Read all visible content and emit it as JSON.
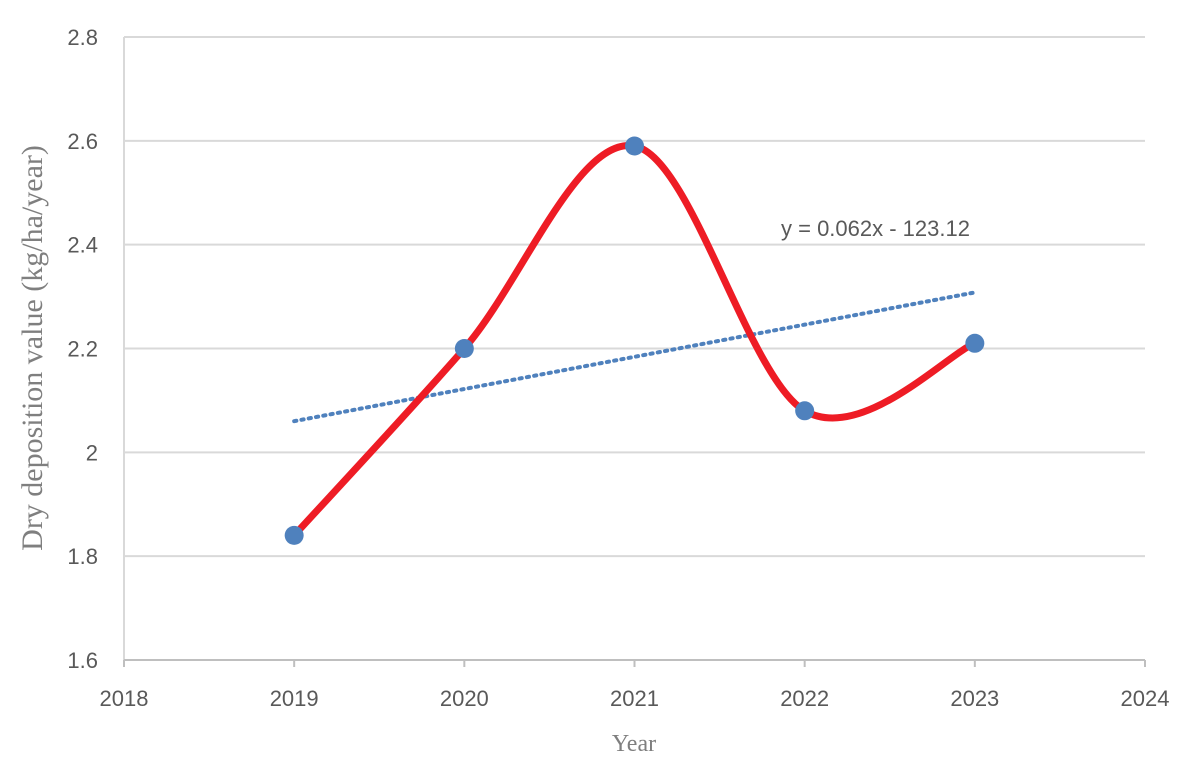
{
  "chart_data": {
    "type": "scatter",
    "title": "",
    "xlabel": "Year",
    "ylabel": "Dry deposition value (kg/ha/year)",
    "xlim": [
      2018,
      2024
    ],
    "ylim": [
      1.6,
      2.8
    ],
    "x_ticks": [
      2018,
      2019,
      2020,
      2021,
      2022,
      2023,
      2024
    ],
    "y_ticks": [
      1.6,
      1.8,
      2,
      2.2,
      2.4,
      2.6,
      2.8
    ],
    "grid": "horizontal",
    "series": [
      {
        "x": [
          2019,
          2020,
          2021,
          2022,
          2023
        ],
        "y": [
          1.84,
          2.2,
          2.59,
          2.08,
          2.21
        ],
        "line": "smoothed",
        "line_color": "#ee1c25",
        "marker_color": "#4f81bd"
      }
    ],
    "trendline": {
      "type": "linear",
      "equation": "y = 0.062x - 123.12",
      "slope": 0.062,
      "intercept": -123.12,
      "x_range": [
        2019,
        2023
      ],
      "style": "dotted",
      "color": "#4f81bd"
    },
    "colors": {
      "line": "#ee1c25",
      "marker": "#4f81bd",
      "trendline": "#4f81bd",
      "grid": "#d9d9d9",
      "text": "#595959"
    }
  }
}
